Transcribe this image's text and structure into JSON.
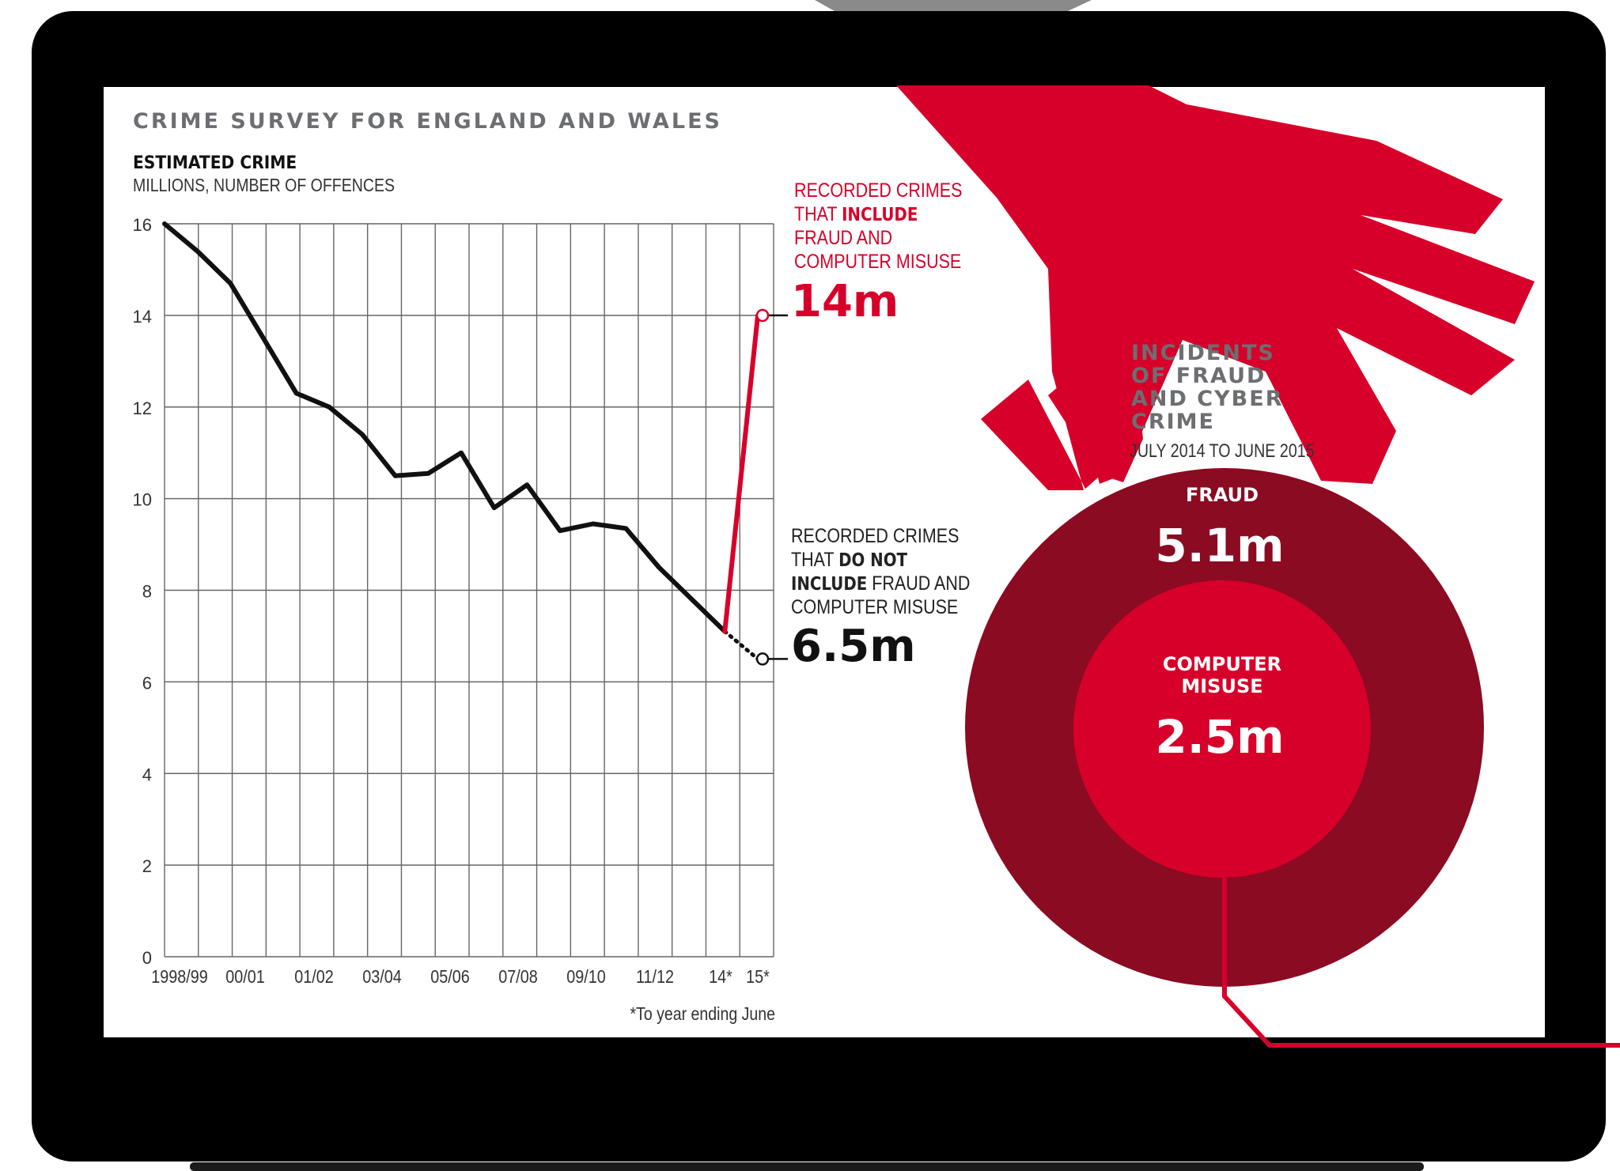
{
  "colors": {
    "frame": "#000000",
    "screen": "#ffffff",
    "accent_red": "#d7002a",
    "dark_red": "#8b0b22",
    "grey_heading": "#6d6e71",
    "grid": "#555555",
    "line_black": "#111111"
  },
  "survey_title": "CRIME SURVEY FOR ENGLAND AND WALES",
  "chart_title": "ESTIMATED CRIME",
  "chart_subtitle": "MILLIONS, NUMBER OF OFFENCES",
  "footnote": "*To year ending June",
  "annotation_include": {
    "line1": "RECORDED CRIMES",
    "line2_pre": "THAT ",
    "line2_bold": "INCLUDE",
    "line3": "FRAUD AND",
    "line4": "COMPUTER MISUSE",
    "value": "14m"
  },
  "annotation_exclude": {
    "line1": "RECORDED CRIMES",
    "line2_pre": "THAT ",
    "line2_bold": "DO NOT",
    "line3_bold": "INCLUDE",
    "line3_post": " FRAUD AND",
    "line4": "COMPUTER MISUSE",
    "value": "6.5m"
  },
  "fraud_panel": {
    "title_lines": [
      "INCIDENTS",
      "OF FRAUD",
      "AND CYBER",
      "CRIME"
    ],
    "period": "JULY 2014 TO JUNE 2015",
    "fraud_label": "FRAUD",
    "fraud_value": "5.1m",
    "misuse_label_lines": [
      "COMPUTER",
      "MISUSE"
    ],
    "misuse_value": "2.5m"
  },
  "chart_data": {
    "type": "line",
    "title": "ESTIMATED CRIME",
    "ylabel": "MILLIONS, NUMBER OF OFFENCES",
    "ylim": [
      0,
      16
    ],
    "yticks": [
      0,
      2,
      4,
      6,
      8,
      10,
      12,
      14,
      16
    ],
    "x_tick_labels": [
      "1998/99",
      "00/01",
      "01/02",
      "03/04",
      "05/06",
      "07/08",
      "09/10",
      "11/12",
      "14*",
      "15*"
    ],
    "x_tick_index": [
      0,
      1,
      2,
      3,
      4,
      5,
      6,
      7,
      8,
      9
    ],
    "grid": true,
    "series": [
      {
        "name": "ESTIMATED CRIME",
        "color": "#111111",
        "points": [
          [
            0,
            16.0
          ],
          [
            0.4,
            15.4
          ],
          [
            0.8,
            14.7
          ],
          [
            1.2,
            13.5
          ],
          [
            1.6,
            12.3
          ],
          [
            2.0,
            12.0
          ],
          [
            2.4,
            11.4
          ],
          [
            2.8,
            10.5
          ],
          [
            3.2,
            10.55
          ],
          [
            3.6,
            11.0
          ],
          [
            4.0,
            9.8
          ],
          [
            4.4,
            10.3
          ],
          [
            4.8,
            9.3
          ],
          [
            5.2,
            9.45
          ],
          [
            5.6,
            9.35
          ],
          [
            6.0,
            8.5
          ],
          [
            6.4,
            7.8
          ],
          [
            6.8,
            7.1
          ]
        ]
      },
      {
        "name": "RECORDED CRIMES THAT DO NOT INCLUDE FRAUD AND COMPUTER MISUSE",
        "color": "#111111",
        "style": "dotted",
        "points": [
          [
            6.8,
            7.1
          ],
          [
            7.2,
            6.5
          ]
        ]
      },
      {
        "name": "RECORDED CRIMES THAT INCLUDE FRAUD AND COMPUTER MISUSE",
        "color": "#d7002a",
        "points": [
          [
            6.8,
            7.1
          ],
          [
            7.2,
            14.0
          ]
        ]
      }
    ]
  }
}
